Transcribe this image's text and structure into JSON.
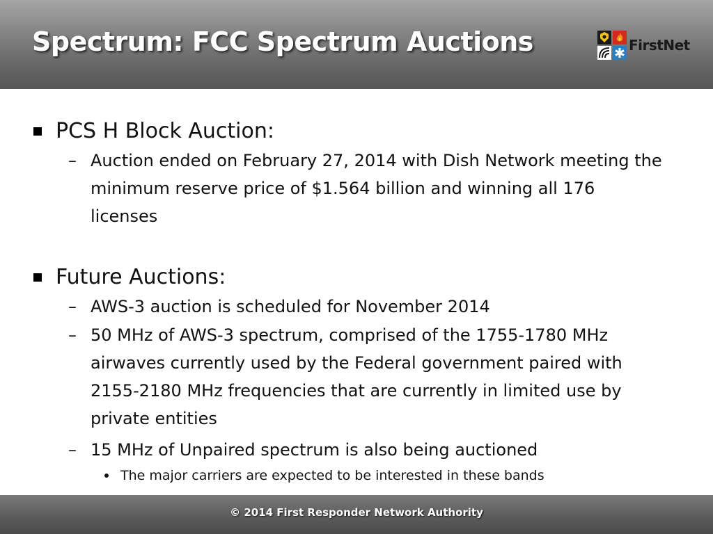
{
  "header": {
    "title": "Spectrum: FCC Spectrum Auctions",
    "logo_text": "FirstNet"
  },
  "sections": [
    {
      "heading": "PCS H Block Auction:",
      "items": [
        {
          "text": "Auction ended on February 27, 2014 with Dish Network meeting the minimum reserve price of $1.564 billion and winning all 176 licenses"
        }
      ]
    },
    {
      "heading": "Future Auctions:",
      "items": [
        {
          "text": "AWS-3 auction is scheduled for November 2014"
        },
        {
          "text": "50 MHz of AWS-3 spectrum, comprised of the 1755-1780 MHz airwaves currently used by the Federal government paired with 2155-2180 MHz frequencies that are currently in limited use by private entities"
        },
        {
          "text": "15 MHz of Unpaired spectrum is also being auctioned",
          "subitems": [
            {
              "text": "The major carriers are expected to be interested in these bands"
            }
          ]
        }
      ]
    }
  ],
  "footer": {
    "text": "© 2014 First Responder Network Authority"
  },
  "colors": {
    "header_dark": "#555555",
    "header_light": "#a6a6a6",
    "footer": "#5c5c5c",
    "text": "#111111",
    "logo_red": "#d42a1e",
    "logo_orange": "#f28c1c",
    "logo_blue": "#2a7fc1",
    "logo_dark": "#1a1a1a"
  },
  "icons": [
    "firstnet-logo-icon",
    "square-bullet-icon",
    "dash-bullet-icon",
    "round-bullet-icon"
  ]
}
